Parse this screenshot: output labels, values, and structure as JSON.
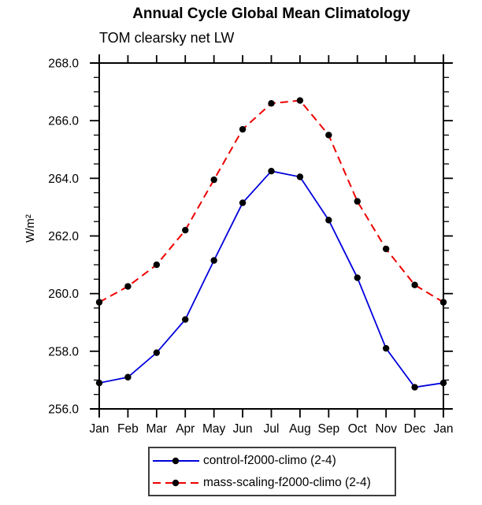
{
  "chart_data": {
    "type": "line",
    "title": "Annual Cycle Global Mean Climatology",
    "subtitle": "TOM clearsky net LW",
    "ylabel": "W/m²",
    "xlabel": "",
    "categories": [
      "Jan",
      "Feb",
      "Mar",
      "Apr",
      "May",
      "Jun",
      "Jul",
      "Aug",
      "Sep",
      "Oct",
      "Nov",
      "Dec",
      "Jan"
    ],
    "ylim": [
      256.0,
      268.0
    ],
    "ytick_step": 2.0,
    "yminor_step": 0.5,
    "grid": false,
    "legend_position": "bottom-center",
    "axis_color": "#000000",
    "marker_color": "#000000",
    "series": [
      {
        "name": "control-f2000-climo (2-4)",
        "color": "#0000dd",
        "style": "solid",
        "marker": "circle",
        "marker_color": "#000000",
        "values": [
          256.9,
          257.1,
          257.95,
          259.1,
          261.15,
          263.15,
          264.25,
          264.05,
          262.55,
          260.55,
          258.1,
          256.75,
          256.9
        ]
      },
      {
        "name": "mass-scaling-f2000-climo (2-4)",
        "color": "#ee0000",
        "style": "dashed",
        "marker": "circle",
        "marker_color": "#000000",
        "values": [
          259.7,
          260.25,
          261.0,
          262.2,
          263.95,
          265.7,
          266.6,
          266.7,
          265.5,
          263.2,
          261.55,
          260.3,
          259.7
        ]
      }
    ]
  }
}
